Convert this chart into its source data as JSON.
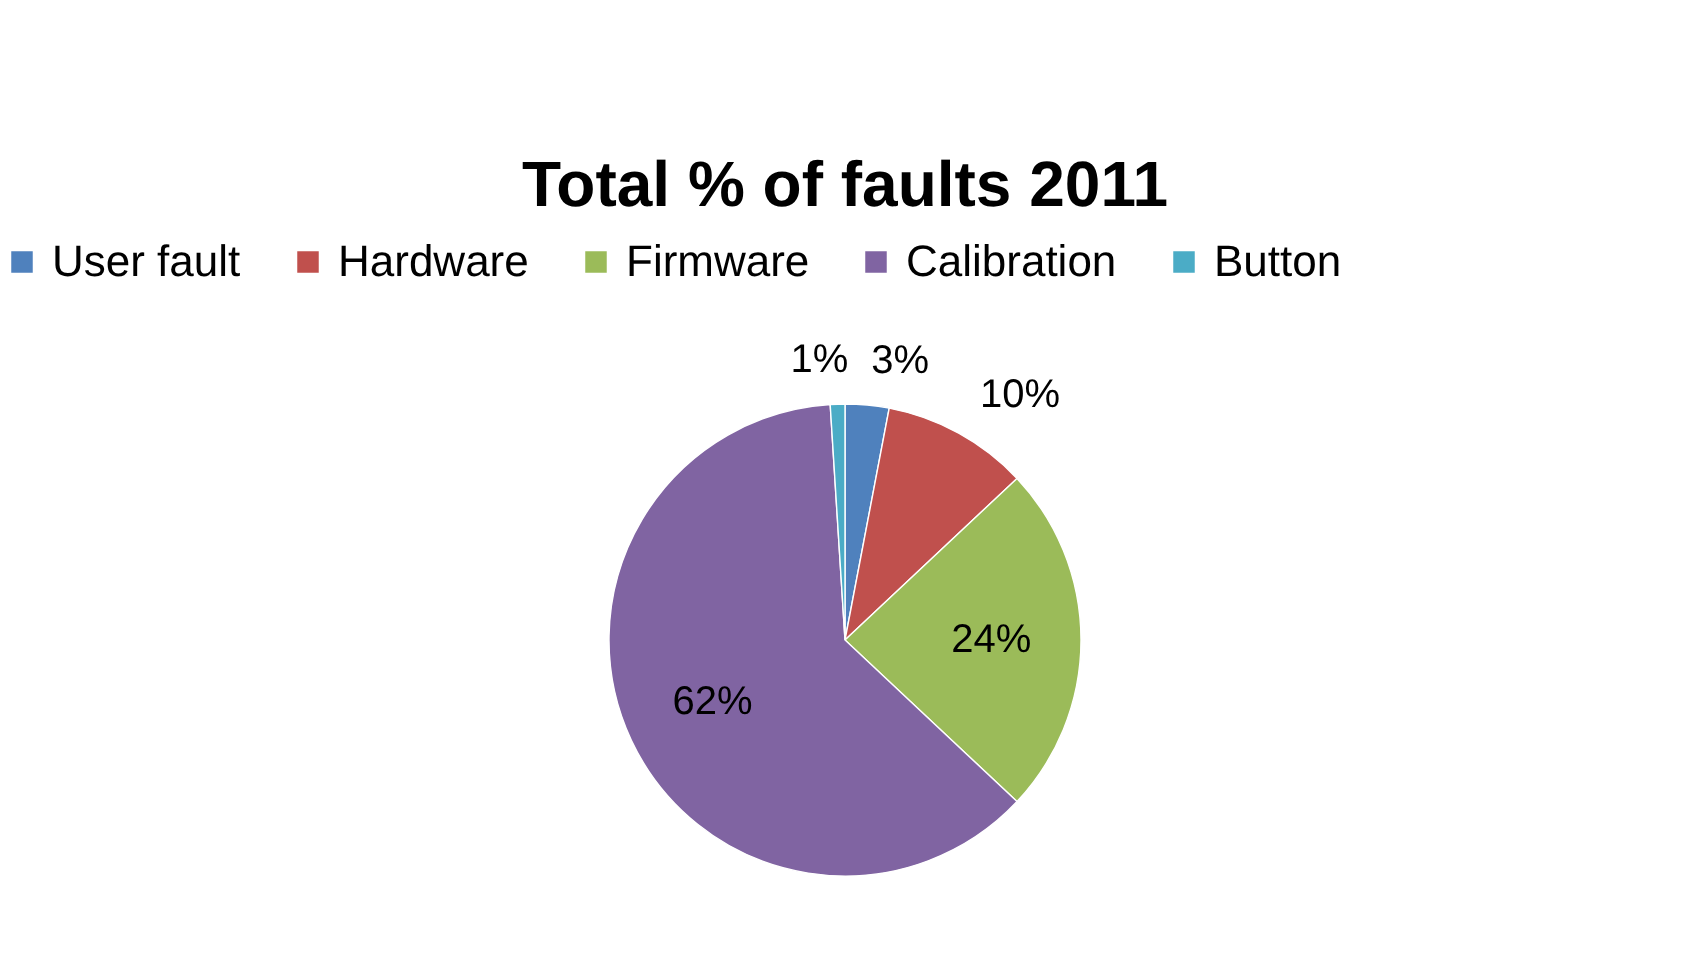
{
  "chart_data": {
    "type": "pie",
    "title": "Total % of faults 2011",
    "categories": [
      "User fault",
      "Hardware",
      "Firmware",
      "Calibration",
      "Button"
    ],
    "values": [
      3,
      10,
      24,
      62,
      1
    ],
    "value_labels": [
      "3%",
      "10%",
      "24%",
      "62%",
      "1%"
    ],
    "colors": [
      "#4f81bd",
      "#c0504d",
      "#9bbb59",
      "#8064a2",
      "#4bacc6"
    ],
    "legend": "top"
  }
}
